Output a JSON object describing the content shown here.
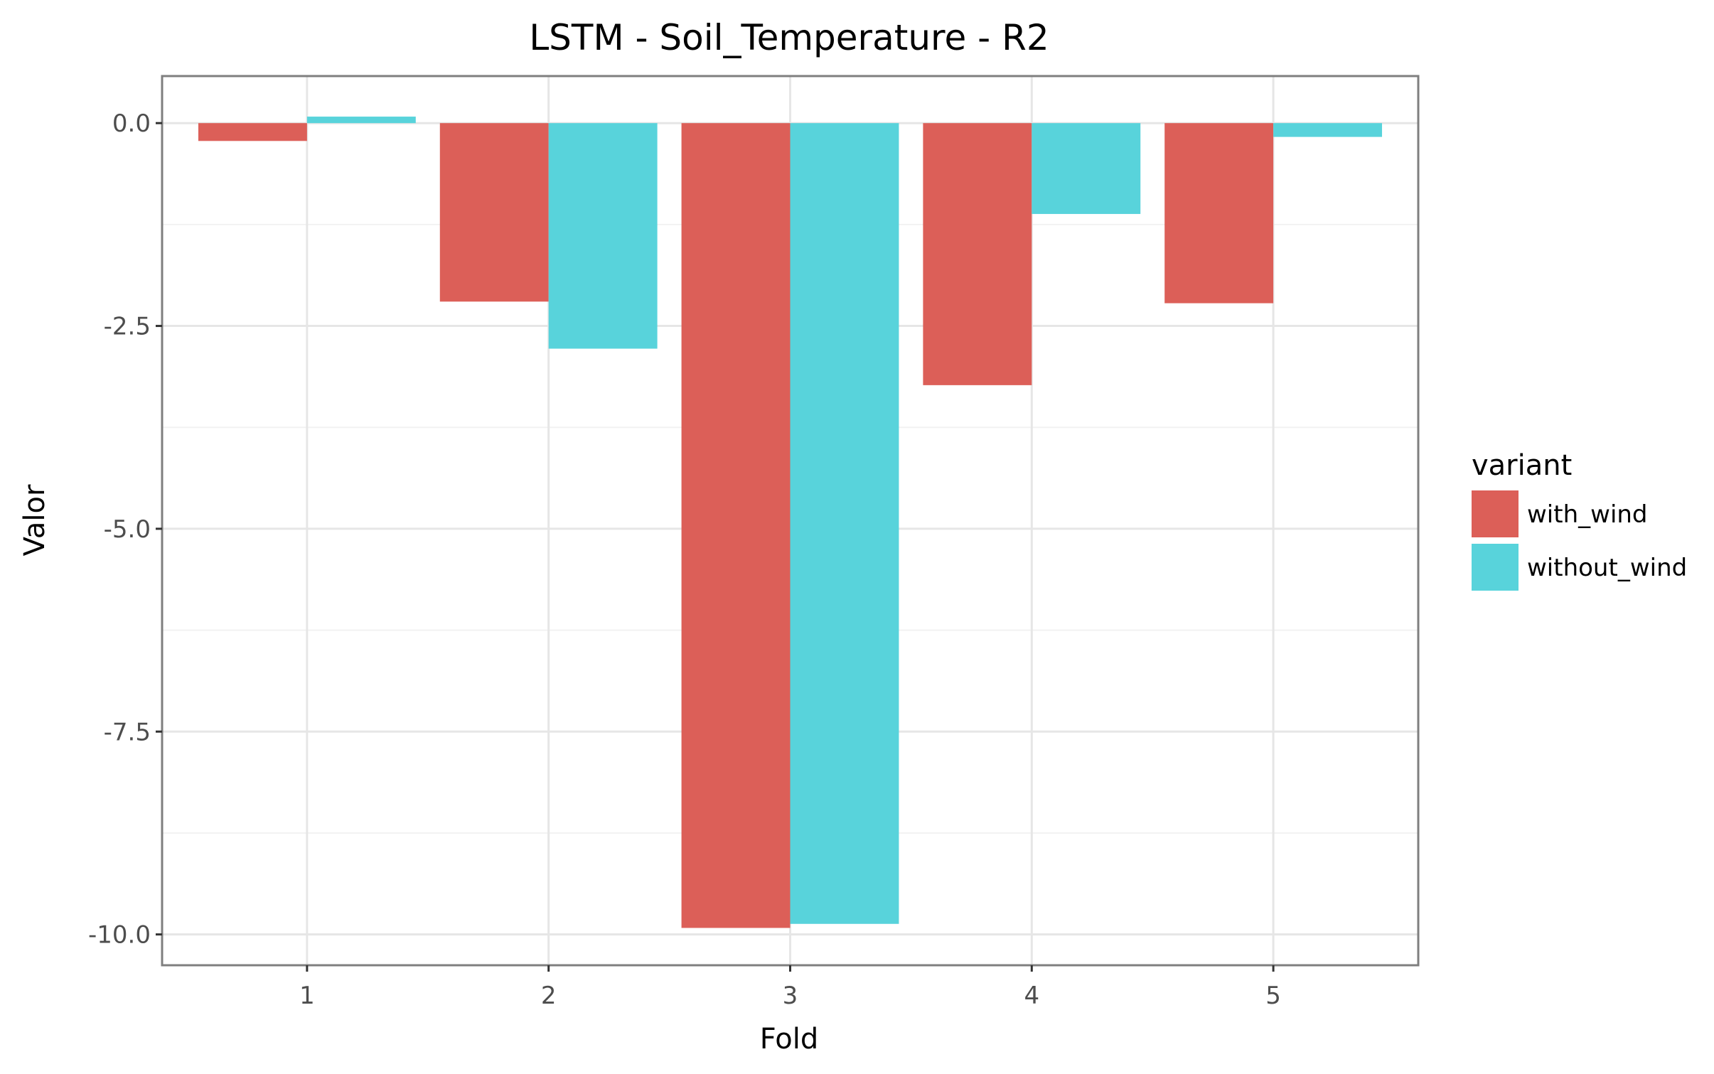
{
  "chart_data": {
    "type": "bar",
    "title": "LSTM - Soil_Temperature - R2",
    "xlabel": "Fold",
    "ylabel": "Valor",
    "categories": [
      "1",
      "2",
      "3",
      "4",
      "5"
    ],
    "series": [
      {
        "name": "with_wind",
        "color": "#dc5f58",
        "values": [
          -0.22,
          -2.2,
          -9.92,
          -3.23,
          -2.22
        ]
      },
      {
        "name": "without_wind",
        "color": "#58d3db",
        "values": [
          0.08,
          -2.78,
          -9.87,
          -1.12,
          -0.17
        ]
      }
    ],
    "ylim": [
      -10.38,
      0.58
    ],
    "yticks": [
      0.0,
      -2.5,
      -5.0,
      -7.5,
      -10.0
    ],
    "ytick_labels": [
      "0.0",
      "-2.5",
      "-5.0",
      "-7.5",
      "-10.0"
    ],
    "grid": true,
    "legend": {
      "title": "variant",
      "placement": "right"
    }
  }
}
